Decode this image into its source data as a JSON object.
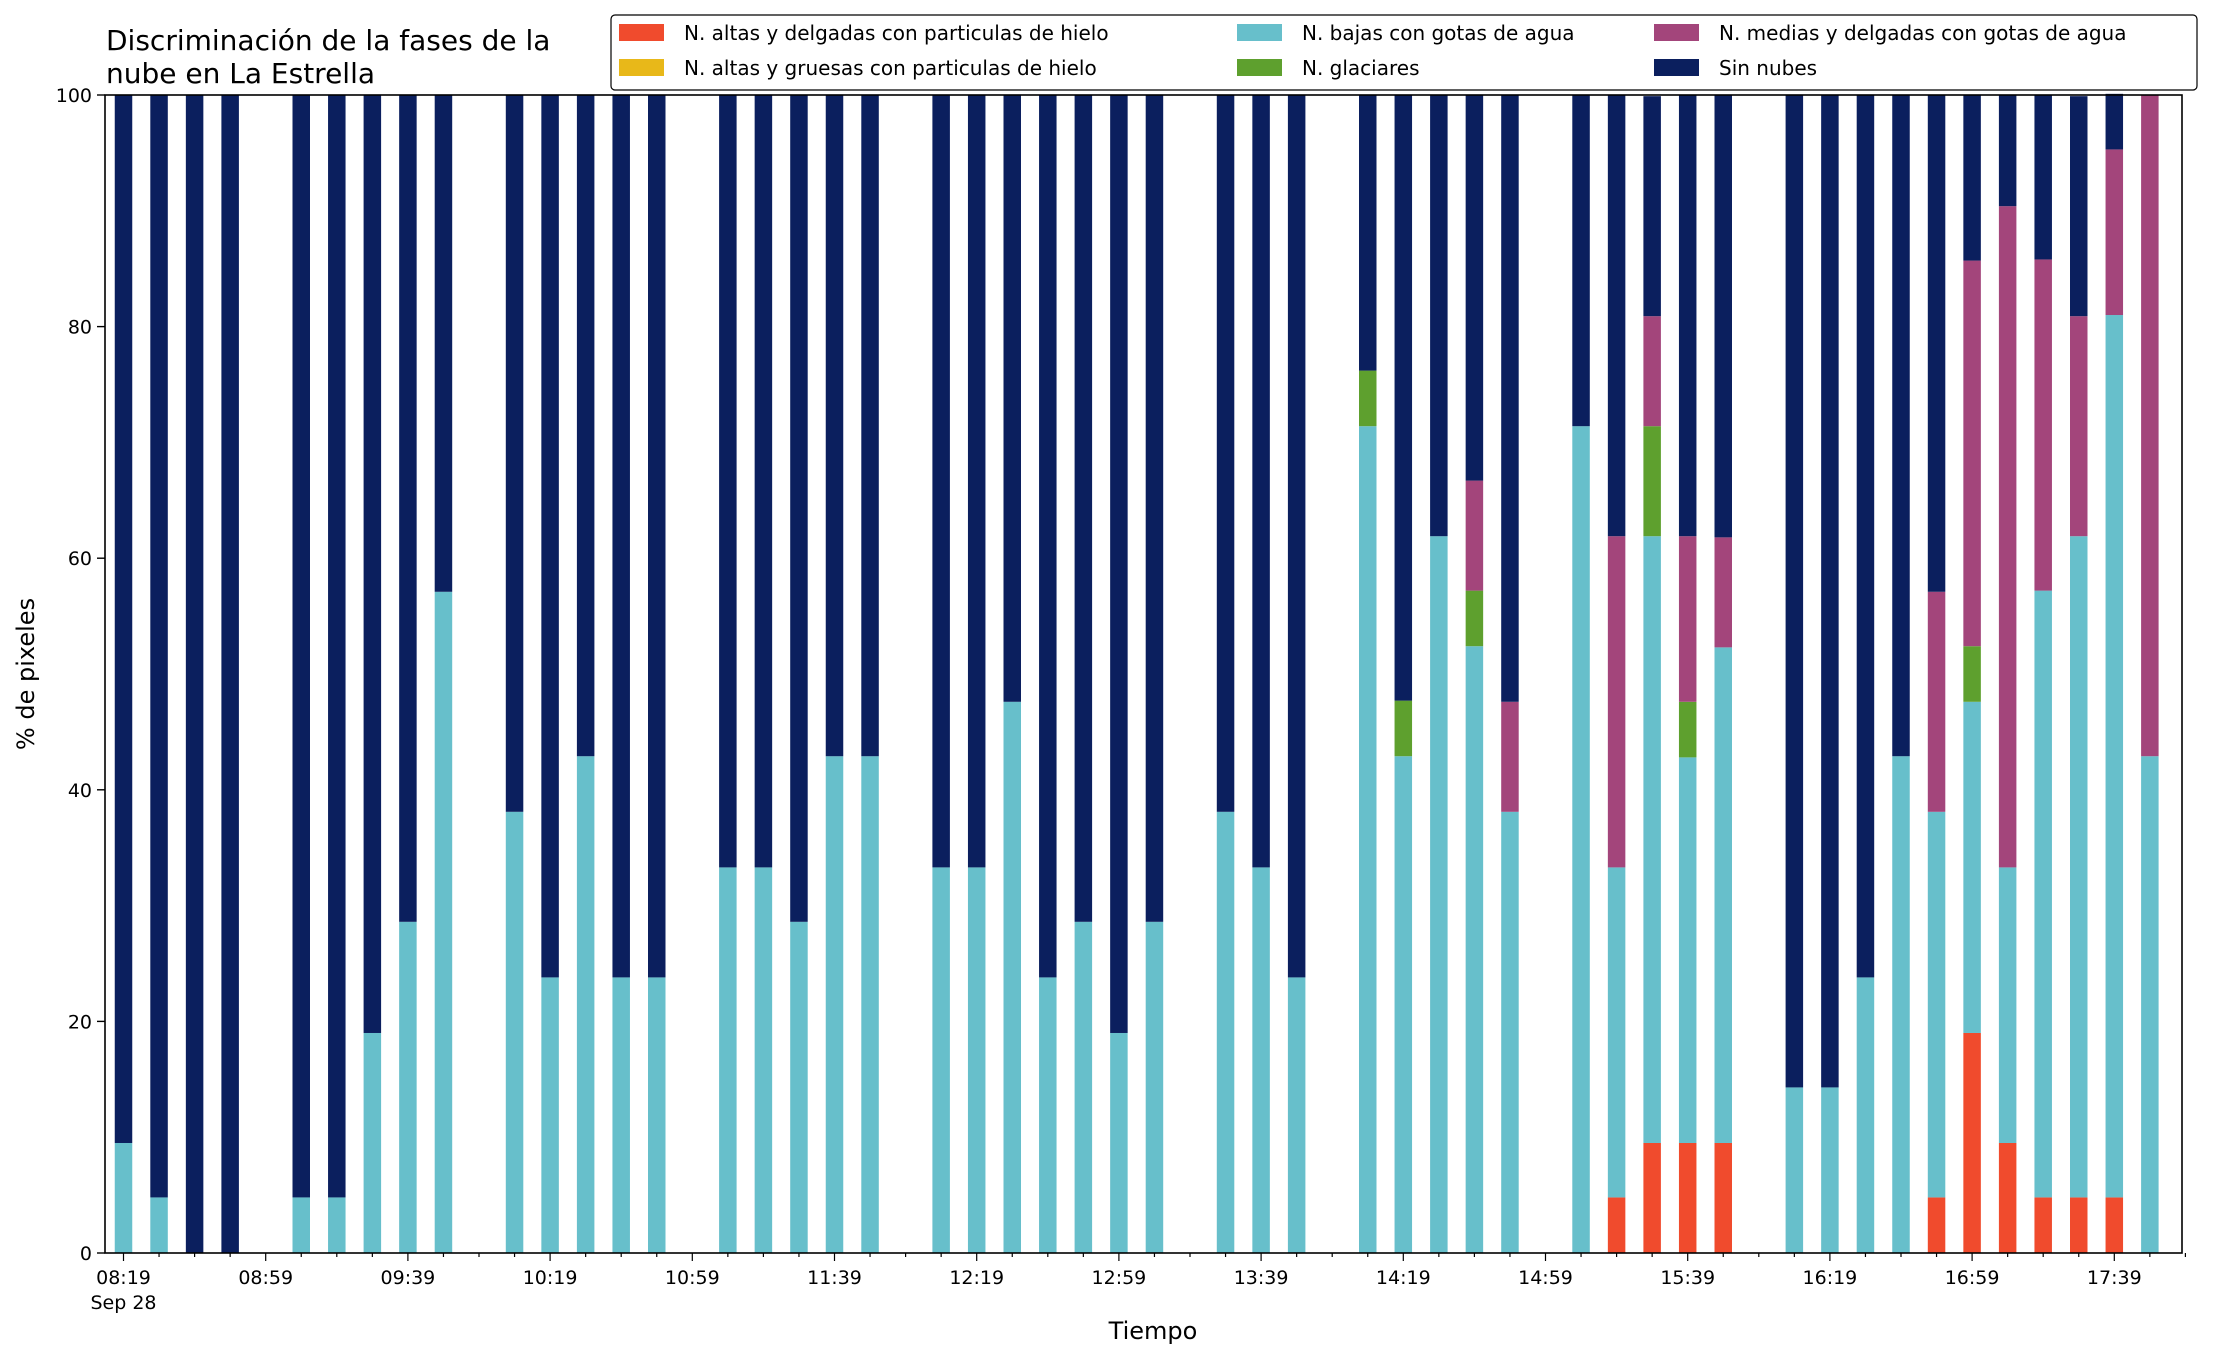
{
  "chart_data": {
    "type": "bar",
    "stacked": true,
    "title_lines": [
      "Discriminación de la fases de la",
      "nube en La Estrella"
    ],
    "xlabel": "Tiempo",
    "ylabel": "% de pixeles",
    "ylim": [
      0,
      100
    ],
    "yticks": [
      0,
      20,
      40,
      60,
      80,
      100
    ],
    "xtick_labels": [
      "08:19",
      "08:59",
      "09:39",
      "10:19",
      "10:59",
      "11:39",
      "12:19",
      "12:59",
      "13:39",
      "14:19",
      "14:59",
      "15:39",
      "16:19",
      "16:59",
      "17:39"
    ],
    "xtick_sublabel": "Sep 28",
    "grid": false,
    "legend_position": "top-right",
    "legend_layout": [
      [
        "N. altas y delgadas con particulas de hielo",
        "N. bajas con gotas de agua",
        "N. medias y delgadas con gotas de agua"
      ],
      [
        "N. altas y gruesas con particulas de hielo",
        "N. glaciares",
        "Sin nubes"
      ]
    ],
    "times": [
      "08:19",
      "08:29",
      "08:39",
      "08:49",
      "08:59",
      "09:09",
      "09:19",
      "09:29",
      "09:39",
      "09:49",
      "09:59",
      "10:09",
      "10:19",
      "10:29",
      "10:39",
      "10:49",
      "10:59",
      "11:09",
      "11:19",
      "11:29",
      "11:39",
      "11:49",
      "11:59",
      "12:09",
      "12:19",
      "12:29",
      "12:39",
      "12:49",
      "12:59",
      "13:09",
      "13:19",
      "13:29",
      "13:39",
      "13:49",
      "13:59",
      "14:09",
      "14:19",
      "14:29",
      "14:39",
      "14:49",
      "14:59",
      "15:09",
      "15:19",
      "15:29",
      "15:39",
      "15:49",
      "15:59",
      "16:09",
      "16:19",
      "16:29",
      "16:39",
      "16:49",
      "16:59",
      "17:09",
      "17:19",
      "17:29",
      "17:39",
      "17:49",
      "17:59"
    ],
    "series": [
      {
        "name": "N. altas y delgadas con particulas de hielo",
        "color": "#f04b2d",
        "values": [
          0,
          0,
          0,
          0,
          null,
          0,
          0,
          0,
          0,
          0,
          null,
          0,
          0,
          0,
          0,
          0,
          null,
          0,
          0,
          0,
          0,
          0,
          null,
          0,
          0,
          0,
          0,
          0,
          0,
          0,
          null,
          0,
          0,
          0,
          null,
          0,
          0,
          0,
          0,
          0,
          null,
          0,
          4.8,
          9.5,
          9.5,
          9.5,
          null,
          0,
          0,
          0,
          0,
          4.8,
          19,
          9.5,
          4.8,
          4.8,
          4.8,
          0,
          null
        ]
      },
      {
        "name": "N. altas y gruesas con particulas de hielo",
        "color": "#e8b819",
        "values": [
          0,
          0,
          0,
          0,
          null,
          0,
          0,
          0,
          0,
          0,
          null,
          0,
          0,
          0,
          0,
          0,
          null,
          0,
          0,
          0,
          0,
          0,
          null,
          0,
          0,
          0,
          0,
          0,
          0,
          0,
          null,
          0,
          0,
          0,
          null,
          0,
          0,
          0,
          0,
          0,
          null,
          0,
          0,
          0,
          0,
          0,
          null,
          0,
          0,
          0,
          0,
          0,
          0,
          0,
          0,
          0,
          0,
          0,
          null
        ]
      },
      {
        "name": "N. bajas con gotas de agua",
        "color": "#67bfcb",
        "values": [
          9.5,
          4.8,
          0,
          0,
          null,
          4.8,
          4.8,
          19,
          28.6,
          57.1,
          null,
          38.1,
          23.8,
          42.9,
          23.8,
          23.8,
          null,
          33.3,
          33.3,
          28.6,
          42.9,
          42.9,
          null,
          33.3,
          33.3,
          47.6,
          23.8,
          28.6,
          19,
          28.6,
          null,
          38.1,
          33.3,
          23.8,
          null,
          71.4,
          42.9,
          61.9,
          52.4,
          38.1,
          null,
          71.4,
          28.5,
          52.4,
          33.3,
          42.8,
          null,
          14.3,
          14.3,
          23.8,
          42.9,
          33.3,
          28.6,
          23.8,
          52.4,
          57.1,
          76.2,
          42.9,
          null
        ]
      },
      {
        "name": "N. glaciares",
        "color": "#5ea02e",
        "values": [
          0,
          0,
          0,
          0,
          null,
          0,
          0,
          0,
          0,
          0,
          null,
          0,
          0,
          0,
          0,
          0,
          null,
          0,
          0,
          0,
          0,
          0,
          null,
          0,
          0,
          0,
          0,
          0,
          0,
          0,
          null,
          0,
          0,
          0,
          null,
          4.8,
          4.8,
          0,
          4.8,
          0,
          null,
          0,
          0,
          9.5,
          4.8,
          0,
          null,
          0,
          0,
          0,
          0,
          0,
          4.8,
          0,
          0,
          0,
          0,
          0,
          null
        ]
      },
      {
        "name": "N. medias y delgadas con gotas de agua",
        "color": "#a3457b",
        "values": [
          0,
          0,
          0,
          0,
          null,
          0,
          0,
          0,
          0,
          0,
          null,
          0,
          0,
          0,
          0,
          0,
          null,
          0,
          0,
          0,
          0,
          0,
          null,
          0,
          0,
          0,
          0,
          0,
          0,
          0,
          null,
          0,
          0,
          0,
          null,
          0,
          0,
          0,
          9.5,
          9.5,
          null,
          0,
          28.6,
          9.5,
          14.3,
          9.5,
          null,
          0,
          0,
          0,
          0,
          19,
          33.3,
          57.1,
          28.6,
          19,
          14.3,
          57.1,
          null
        ]
      },
      {
        "name": "Sin nubes",
        "color": "#0b1f5e",
        "values": [
          90.5,
          95.2,
          100,
          100,
          null,
          95.2,
          95.2,
          81,
          71.4,
          42.9,
          null,
          61.9,
          76.2,
          57.1,
          76.2,
          76.2,
          null,
          66.7,
          66.7,
          71.4,
          57.1,
          57.1,
          null,
          66.7,
          66.7,
          52.4,
          76.2,
          71.4,
          81,
          71.4,
          null,
          61.9,
          66.7,
          76.2,
          null,
          23.8,
          52.3,
          38.1,
          33.3,
          52.4,
          null,
          28.6,
          38.1,
          19,
          38.1,
          38.2,
          null,
          85.7,
          85.7,
          76.2,
          57.1,
          42.9,
          14.3,
          9.6,
          14.2,
          19,
          4.8,
          0,
          null
        ]
      }
    ]
  }
}
